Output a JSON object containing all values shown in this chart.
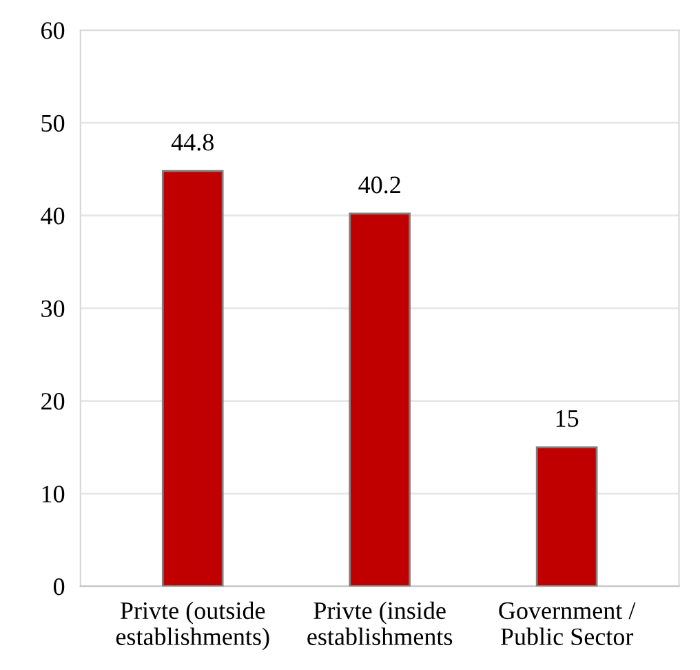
{
  "chart_data": {
    "type": "bar",
    "categories": [
      "Privte (outside\nestablishments)",
      "Privte (inside\nestablishments",
      "Government /\nPublic Sector"
    ],
    "values": [
      44.8,
      40.2,
      15
    ],
    "color": "#c00000",
    "ylim": [
      0,
      60
    ],
    "yticks": [
      0,
      10,
      20,
      30,
      40,
      50,
      60
    ],
    "grid": "y",
    "data_labels": true,
    "legend": false
  }
}
